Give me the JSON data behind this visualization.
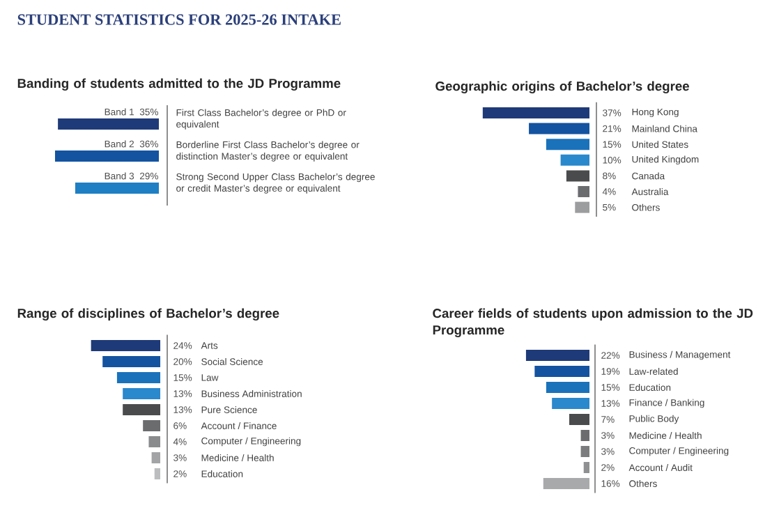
{
  "chart_data": [
    {
      "type": "bar",
      "orientation": "horizontal",
      "title": "STUDENT STATISTICS FOR 2025-26 INTAKE",
      "subtitle": "Banding of students admitted to the JD Programme",
      "categories": [
        "Band 1",
        "Band 2",
        "Band 3"
      ],
      "values": [
        35,
        36,
        29
      ],
      "value_labels": [
        "35%",
        "36%",
        "29%"
      ],
      "colors": [
        "#1f3a78",
        "#1453a0",
        "#1f7fc4"
      ],
      "annotations": [
        "First Class Bachelor’s degree or PhD or equivalent",
        "Borderline First Class Bachelor’s degree or distinction Master’s degree or equivalent",
        "Strong Second Upper Class Bachelor’s degree or credit Master’s degree or equivalent"
      ]
    },
    {
      "type": "bar",
      "orientation": "horizontal",
      "title": "Geographic origins of Bachelor’s degree",
      "categories": [
        "Hong Kong",
        "Mainland China",
        "United States",
        "United Kingdom",
        "Canada",
        "Australia",
        "Others"
      ],
      "values": [
        37,
        21,
        15,
        10,
        8,
        4,
        5
      ],
      "value_labels": [
        "37%",
        "21%",
        "15%",
        "10%",
        "8%",
        "4%",
        "5%"
      ],
      "colors": [
        "#1f3a78",
        "#1453a0",
        "#1a72bb",
        "#2a88cc",
        "#4a4b4d",
        "#6b6c6e",
        "#9c9d9f"
      ]
    },
    {
      "type": "bar",
      "orientation": "horizontal",
      "title": "Range of disciplines of Bachelor’s degree",
      "categories": [
        "Arts",
        "Social Science",
        "Law",
        "Business Administration",
        "Pure Science",
        "Account / Finance",
        "Computer / Engineering",
        "Medicine / Health",
        "Education"
      ],
      "values": [
        24,
        20,
        15,
        13,
        13,
        6,
        4,
        3,
        2
      ],
      "value_labels": [
        "24%",
        "20%",
        "15%",
        "13%",
        "13%",
        "6%",
        "4%",
        "3%",
        "2%"
      ],
      "colors": [
        "#1f3a78",
        "#1453a0",
        "#1a72bb",
        "#2a88cc",
        "#4a4b4d",
        "#6b6c6e",
        "#8a8b8d",
        "#a3a4a6",
        "#bcbdbf"
      ]
    },
    {
      "type": "bar",
      "orientation": "horizontal",
      "title": "Career fields of students upon admission to the JD Programme",
      "categories": [
        "Business / Management",
        "Law-related",
        "Education",
        "Finance / Banking",
        "Public Body",
        "Medicine / Health",
        "Computer / Engineering",
        "Account / Audit",
        "Others"
      ],
      "values": [
        22,
        19,
        15,
        13,
        7,
        3,
        3,
        2,
        16
      ],
      "value_labels": [
        "22%",
        "19%",
        "15%",
        "13%",
        "7%",
        "3%",
        "3%",
        "2%",
        "16%"
      ],
      "colors": [
        "#1f3a78",
        "#1453a0",
        "#1a72bb",
        "#2a88cc",
        "#4a4b4d",
        "#6b6c6e",
        "#7b7c7e",
        "#8f9092",
        "#a8a9ab"
      ]
    }
  ]
}
